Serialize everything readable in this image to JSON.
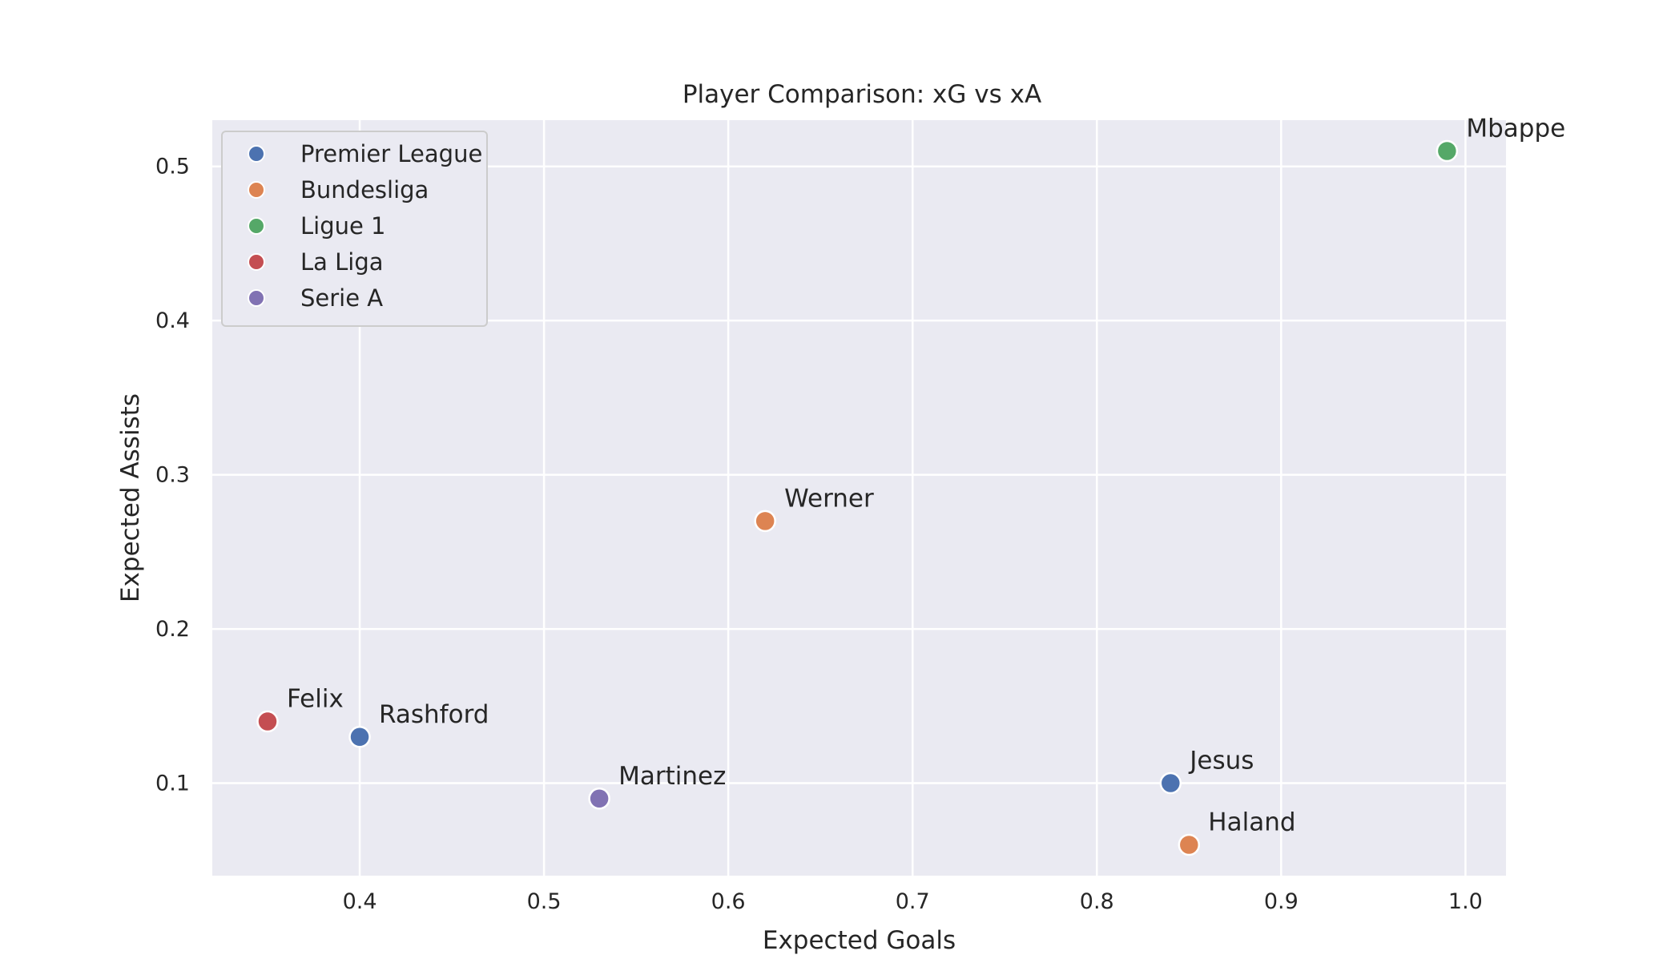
{
  "chart_data": {
    "type": "scatter",
    "title": "Player Comparison: xG vs xA",
    "xlabel": "Expected Goals",
    "ylabel": "Expected Assists",
    "xlim": [
      0.32,
      1.022
    ],
    "ylim": [
      0.04,
      0.53
    ],
    "xticks": [
      "0.4",
      "0.5",
      "0.6",
      "0.7",
      "0.8",
      "0.9",
      "1.0"
    ],
    "yticks": [
      "0.1",
      "0.2",
      "0.3",
      "0.4",
      "0.5"
    ],
    "grid": true,
    "legend_position": "top-left",
    "series": [
      {
        "name": "Premier League",
        "color": "#4c72b0",
        "points": [
          {
            "label": "Rashford",
            "x": 0.4,
            "y": 0.13
          },
          {
            "label": "Jesus",
            "x": 0.84,
            "y": 0.1
          }
        ]
      },
      {
        "name": "Bundesliga",
        "color": "#dd8452",
        "points": [
          {
            "label": "Werner",
            "x": 0.62,
            "y": 0.27
          },
          {
            "label": "Haland",
            "x": 0.85,
            "y": 0.06
          }
        ]
      },
      {
        "name": "Ligue 1",
        "color": "#55a868",
        "points": [
          {
            "label": "Mbappe",
            "x": 0.99,
            "y": 0.51
          }
        ]
      },
      {
        "name": "La Liga",
        "color": "#c44e52",
        "points": [
          {
            "label": "Felix",
            "x": 0.35,
            "y": 0.14
          }
        ]
      },
      {
        "name": "Serie A",
        "color": "#8172b3",
        "points": [
          {
            "label": "Martinez",
            "x": 0.53,
            "y": 0.09
          }
        ]
      }
    ]
  }
}
